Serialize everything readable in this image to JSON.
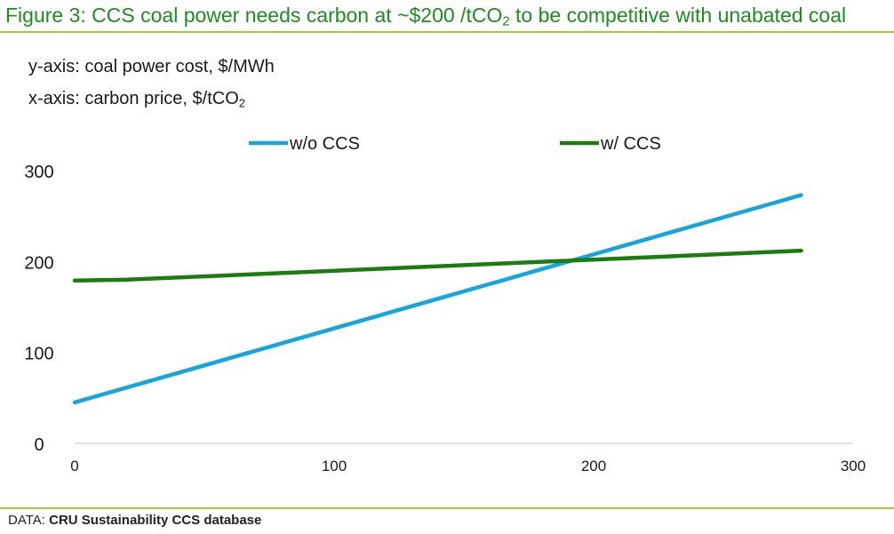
{
  "header": {
    "title_main": "Figure 3: CCS coal power needs carbon at ~$200 /tCO",
    "title_sub": "2",
    "title_end": " to be competitive with unabated coal"
  },
  "notes": {
    "y_axis": "y-axis: coal power cost, $/MWh",
    "x_axis_main": "x-axis: carbon price, $/tCO",
    "x_axis_sub": "2"
  },
  "chart_data": {
    "type": "line",
    "xlim": [
      0,
      300
    ],
    "ylim": [
      0,
      300
    ],
    "x_ticks": [
      "0",
      "100",
      "200",
      "300"
    ],
    "y_ticks": [
      "0",
      "100",
      "200",
      "300"
    ],
    "grid": false,
    "legend_position": "top",
    "series": [
      {
        "name": "w/o CCS",
        "color": "#16a5dd",
        "x": [
          0,
          280
        ],
        "y": [
          45,
          273
        ]
      },
      {
        "name": "w/ CCS",
        "color": "#1b7c12",
        "x": [
          0,
          20,
          280
        ],
        "y": [
          179,
          180,
          212
        ]
      }
    ]
  },
  "footer": {
    "source_label": "DATA:",
    "source_text": "CRU Sustainability CCS database"
  }
}
